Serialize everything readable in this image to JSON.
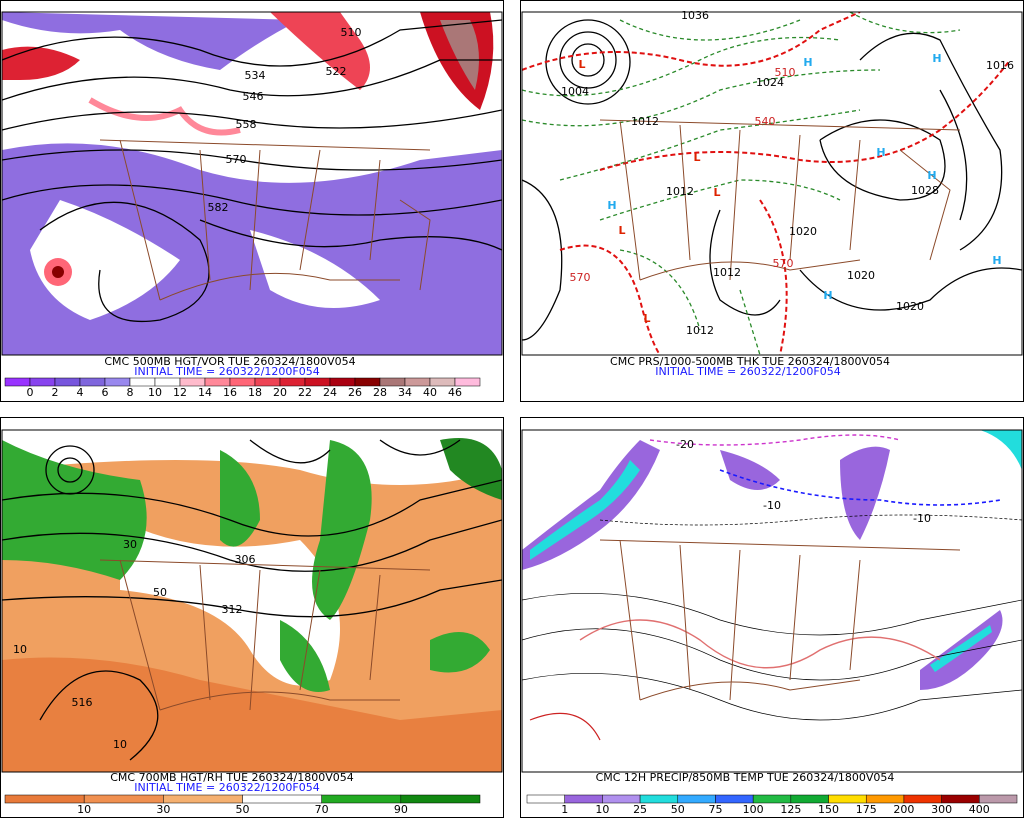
{
  "panels": [
    {
      "caption": "CMC 500MB HGT/VOR TUE 260324/1800V054",
      "initial_time": "INITIAL TIME = 260322/1200F054",
      "legend": {
        "labels": [
          "0",
          "2",
          "4",
          "6",
          "8",
          "10",
          "12",
          "14",
          "16",
          "18",
          "20",
          "22",
          "24",
          "26",
          "28",
          "34",
          "40",
          "46"
        ],
        "colors": [
          "#9933ff",
          "#8844ee",
          "#7755dd",
          "#7f66dd",
          "#9988ee",
          "#ffffff",
          "#ffffff",
          "#ffbbcc",
          "#ff8899",
          "#ff6677",
          "#ee4455",
          "#dd2233",
          "#cc1122",
          "#aa0011",
          "#880000",
          "#aa7777",
          "#cc9999",
          "#ddbbbb",
          "#ffbbdd"
        ]
      },
      "map_labels": [
        "510",
        "522",
        "534",
        "546",
        "558",
        "570",
        "582"
      ]
    },
    {
      "caption": "CMC PRS/1000-500MB THK TUE 260324/1800V054",
      "initial_time": "INITIAL TIME = 260322/1200F054",
      "map_labels": [
        "1004",
        "1012",
        "1012",
        "1012",
        "1012",
        "1020",
        "1020",
        "1020",
        "1028",
        "1036",
        "1016",
        "1024",
        "570",
        "570",
        "510",
        "540"
      ],
      "highs": [
        "H",
        "H",
        "H",
        "H",
        "H",
        "H",
        "H"
      ],
      "lows": [
        "L",
        "L",
        "L",
        "L",
        "L"
      ]
    },
    {
      "caption": "CMC 700MB HGT/RH TUE 260324/1800V054",
      "initial_time": "INITIAL TIME = 260322/1200F054",
      "legend": {
        "labels": [
          "10",
          "30",
          "50",
          "70",
          "90"
        ],
        "colors": [
          "#e87a3a",
          "#f09050",
          "#f5b070",
          "#ffffff",
          "#22aa22",
          "#118811"
        ]
      },
      "map_labels": [
        "516",
        "10",
        "10",
        "50",
        "30",
        "306",
        "312"
      ]
    },
    {
      "caption": "CMC 12H PRECIP/850MB TEMP TUE 260324/1800V054",
      "legend": {
        "labels": [
          "1",
          "10",
          "25",
          "50",
          "75",
          "100",
          "125",
          "150",
          "175",
          "200",
          "300",
          "400"
        ],
        "colors": [
          "#ffffff",
          "#9966dd",
          "#b090ee",
          "#22dddd",
          "#33aaff",
          "#3366ff",
          "#22bb44",
          "#11aa33",
          "#ffdd00",
          "#ff9900",
          "#ee3300",
          "#990000",
          "#bb99aa"
        ]
      },
      "map_labels": [
        "-20",
        "-10",
        "-10"
      ]
    }
  ]
}
